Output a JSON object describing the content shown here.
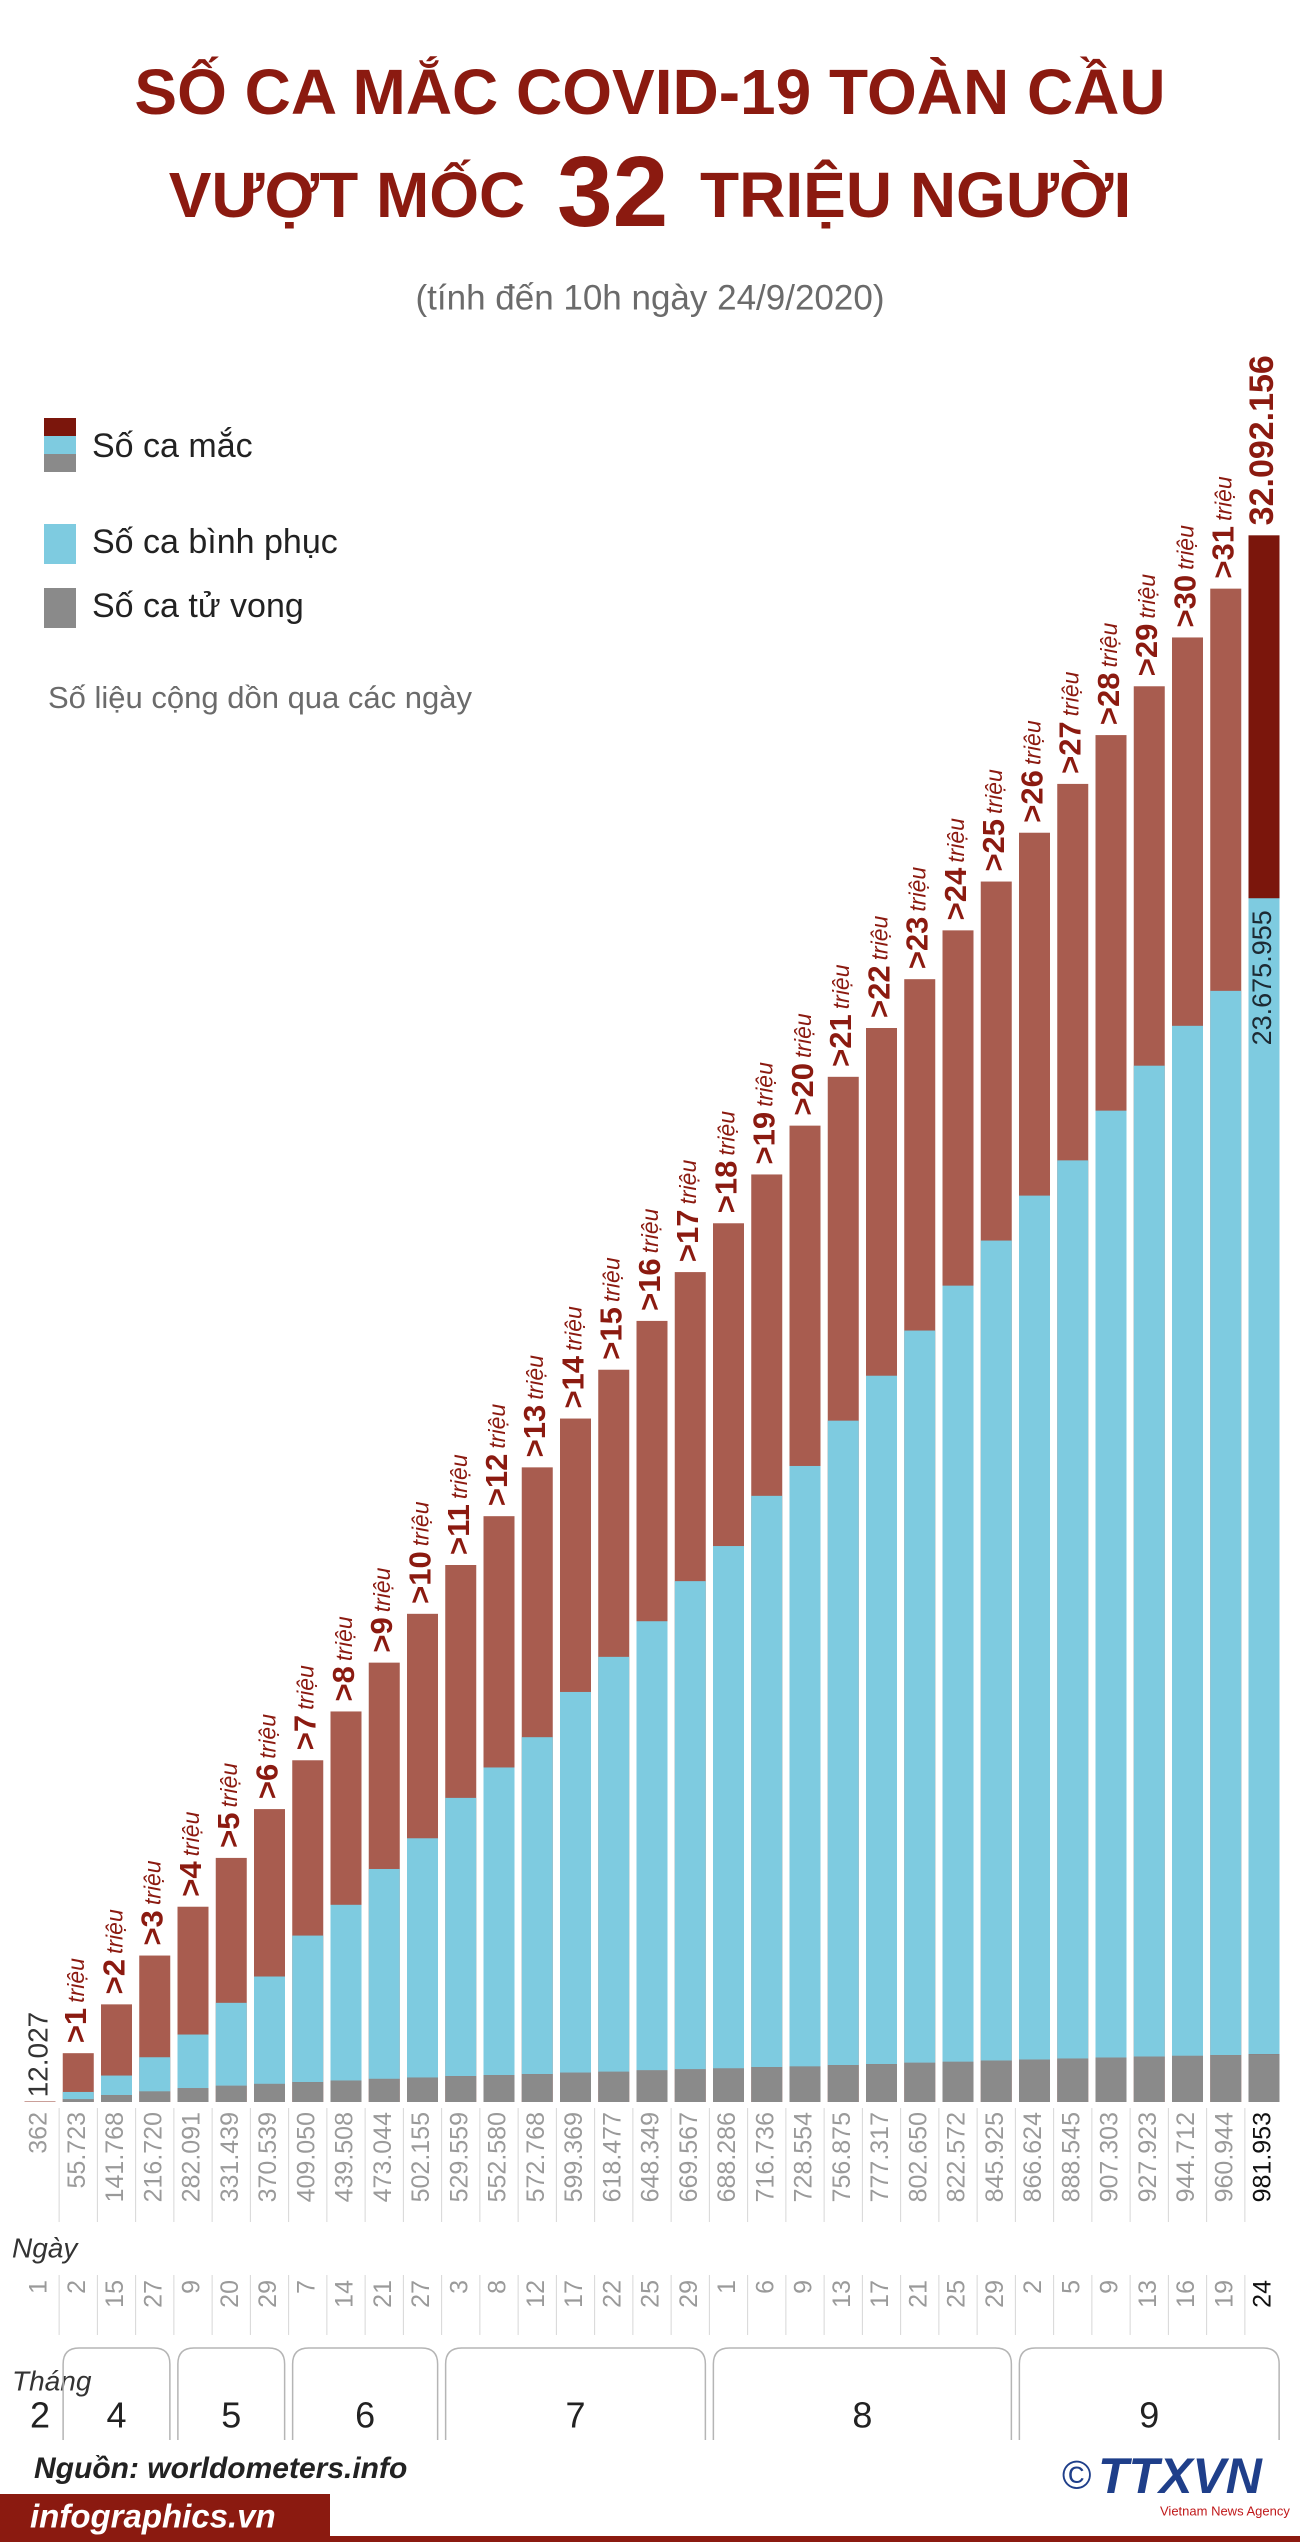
{
  "title": {
    "line1": "SỐ CA MẮC COVID-19 TOÀN CẦU",
    "line2_start": "VƯỢT MỐC",
    "line2_number": "32",
    "line2_end": "TRIỆU NGƯỜI"
  },
  "subtitle": "(tính đến 10h ngày 24/9/2020)",
  "chart_data": {
    "type": "bar",
    "note": "Số liệu cộng dồn qua các ngày",
    "x_label": "Ngày",
    "month_label": "Tháng",
    "categories": [
      "1",
      "2",
      "15",
      "27",
      "9",
      "20",
      "29",
      "7",
      "14",
      "21",
      "27",
      "3",
      "8",
      "12",
      "17",
      "22",
      "25",
      "29",
      "1",
      "6",
      "9",
      "13",
      "17",
      "21",
      "25",
      "29",
      "2",
      "5",
      "9",
      "13",
      "16",
      "19",
      "24"
    ],
    "months": [
      "2",
      "4",
      "4",
      "4",
      "5",
      "5",
      "5",
      "6",
      "6",
      "6",
      "6",
      "7",
      "7",
      "7",
      "7",
      "7",
      "7",
      "7",
      "8",
      "8",
      "8",
      "8",
      "8",
      "8",
      "8",
      "8",
      "9",
      "9",
      "9",
      "9",
      "9",
      "9",
      "9"
    ],
    "ylim": [
      0,
      33000000
    ],
    "series": [
      {
        "name": "Số ca mắc",
        "color": "#7b160c",
        "colors": [
          "#a85c4f",
          "#a85c4f",
          "#a85c4f",
          "#a85c4f",
          "#a85c4f",
          "#a85c4f",
          "#a85c4f",
          "#a85c4f",
          "#a85c4f",
          "#a85c4f",
          "#a85c4f",
          "#a85c4f",
          "#a85c4f",
          "#a85c4f",
          "#a85c4f",
          "#a85c4f",
          "#a85c4f",
          "#a85c4f",
          "#a85c4f",
          "#a85c4f",
          "#a85c4f",
          "#a85c4f",
          "#a85c4f",
          "#a85c4f",
          "#a85c4f",
          "#a85c4f",
          "#a85c4f",
          "#a85c4f",
          "#a85c4f",
          "#a85c4f",
          "#a85c4f",
          "#a85c4f",
          "#7b160c"
        ],
        "values": [
          12027,
          1000000,
          2000000,
          3000000,
          4000000,
          5000000,
          6000000,
          7000000,
          8000000,
          9000000,
          10000000,
          11000000,
          12000000,
          13000000,
          14000000,
          15000000,
          16000000,
          17000000,
          18000000,
          19000000,
          20000000,
          21000000,
          22000000,
          23000000,
          24000000,
          25000000,
          26000000,
          27000000,
          28000000,
          29000000,
          30000000,
          31000000,
          32092156
        ],
        "value_labels": [
          "12.027",
          ">1 triệu",
          ">2 triệu",
          ">3 triệu",
          ">4 triệu",
          ">5 triệu",
          ">6 triệu",
          ">7 triệu",
          ">8 triệu",
          ">9 triệu",
          ">10 triệu",
          ">11 triệu",
          ">12 triệu",
          ">13 triệu",
          ">14 triệu",
          ">15 triệu",
          ">16 triệu",
          ">17 triệu",
          ">18 triệu",
          ">19 triệu",
          ">20 triệu",
          ">21 triệu",
          ">22 triệu",
          ">23 triệu",
          ">24 triệu",
          ">25 triệu",
          ">26 triệu",
          ">27 triệu",
          ">28 triệu",
          ">29 triệu",
          ">30 triệu",
          ">31 triệu",
          "32.092.156"
        ]
      },
      {
        "name": "Số ca bình phục",
        "color": "#7ecbe0",
        "values": [
          300,
          150000,
          400000,
          700000,
          1100000,
          1700000,
          2200000,
          3000000,
          3600000,
          4300000,
          4900000,
          5700000,
          6300000,
          6900000,
          7800000,
          8500000,
          9200000,
          10000000,
          10700000,
          11700000,
          12300000,
          13200000,
          14100000,
          15000000,
          15900000,
          16800000,
          17700000,
          18400000,
          19400000,
          20300000,
          21100000,
          21800000,
          23675955
        ],
        "value_labels": [
          null,
          null,
          null,
          null,
          null,
          null,
          null,
          null,
          null,
          null,
          null,
          null,
          null,
          null,
          null,
          null,
          null,
          null,
          null,
          null,
          null,
          null,
          null,
          null,
          null,
          null,
          null,
          null,
          null,
          null,
          null,
          null,
          "23.675.955"
        ]
      },
      {
        "name": "Số ca tử vong",
        "color": "#8a8a8a",
        "values": [
          362,
          55723,
          141768,
          216720,
          282091,
          331439,
          370539,
          409050,
          439508,
          473044,
          502155,
          529559,
          552580,
          572768,
          599369,
          618477,
          648349,
          669567,
          688286,
          716736,
          728554,
          756875,
          777317,
          802650,
          822572,
          845925,
          866624,
          888545,
          907303,
          927923,
          944712,
          960944,
          981953
        ],
        "value_labels": [
          "362",
          "55.723",
          "141.768",
          "216.720",
          "282.091",
          "331.439",
          "370.539",
          "409.050",
          "439.508",
          "473.044",
          "502.155",
          "529.559",
          "552.580",
          "572.768",
          "599.369",
          "618.477",
          "648.349",
          "669.567",
          "688.286",
          "716.736",
          "728.554",
          "756.875",
          "777.317",
          "802.650",
          "822.572",
          "845.925",
          "866.624",
          "888.545",
          "907.303",
          "927.923",
          "944.712",
          "960.944",
          "981.953"
        ]
      }
    ]
  },
  "source": "Nguồn: worldometers.info",
  "brand": "infographics.vn",
  "logo": {
    "symbol": "©",
    "name": "TTXVN",
    "tagline": "Vietnam News Agency"
  }
}
